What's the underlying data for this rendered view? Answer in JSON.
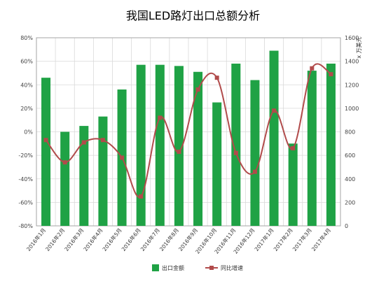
{
  "chart_data": {
    "type": "bar",
    "title": "我国LED路灯出口总额分析",
    "categories": [
      "2016年1月",
      "2016年2月",
      "2016年3月",
      "2016年4月",
      "2016年5月",
      "2016年6月",
      "2016年7月",
      "2016年8月",
      "2016年9月",
      "2016年10月",
      "2016年11月",
      "2016年12月",
      "2017年1月",
      "2017年2月",
      "2017年3月",
      "2017年4月"
    ],
    "series": [
      {
        "name": "出口金额",
        "kind": "bar",
        "axis": "right",
        "color": "#1fa245",
        "values": [
          1260,
          800,
          850,
          930,
          1160,
          1370,
          1370,
          1360,
          1310,
          1050,
          1380,
          1240,
          1490,
          700,
          1320,
          1380
        ]
      },
      {
        "name": "同比增速",
        "kind": "line",
        "axis": "left",
        "color": "#b14b4b",
        "values": [
          -7,
          -26,
          -9,
          -7,
          -22,
          -55,
          12,
          -17,
          36,
          46,
          -18,
          -34,
          18,
          -14,
          54,
          49
        ]
      }
    ],
    "y_left": {
      "ylim": [
        -80,
        80
      ],
      "ticks": [
        "-80%",
        "-60%",
        "-40%",
        "-20%",
        "0%",
        "20%",
        "40%",
        "60%",
        "80%"
      ]
    },
    "y_right": {
      "ylim": [
        0,
        1600
      ],
      "ticks": [
        "0",
        "200",
        "400",
        "600",
        "800",
        "1000",
        "1200",
        "1400",
        "1600"
      ],
      "unit_label": "x 万美元"
    },
    "legend": {
      "position": "bottom",
      "items": [
        "出口金额",
        "同比增速"
      ]
    },
    "grid": true
  }
}
